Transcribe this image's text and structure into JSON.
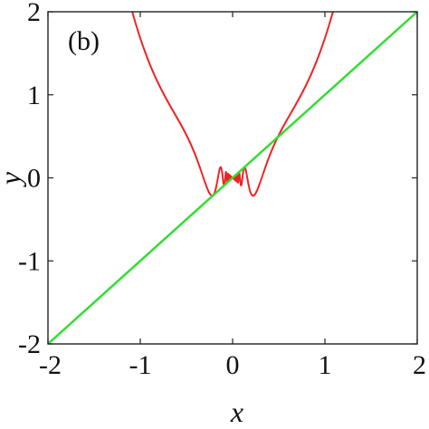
{
  "chart_data": {
    "type": "line",
    "panel_label": "(b)",
    "title": "",
    "xlabel": "x",
    "ylabel": "y",
    "xlim": [
      -2,
      2
    ],
    "ylim": [
      -2,
      2
    ],
    "xticks": [
      -2,
      -1,
      0,
      1,
      2
    ],
    "yticks": [
      -2,
      -1,
      0,
      1,
      2
    ],
    "xtick_labels": [
      "-2",
      "-1",
      "0",
      "1",
      "2"
    ],
    "ytick_labels": [
      "-2",
      "-1",
      "0",
      "1",
      "2"
    ],
    "grid": false,
    "legend": false,
    "series": [
      {
        "color": "#ee2222",
        "function": "y = x*sin(1/x) + x^3 * sin(x)",
        "x_range": [
          -2,
          2
        ]
      },
      {
        "color": "#33dd33",
        "function": "y = x",
        "x": [
          -2,
          2
        ],
        "y": [
          -2,
          2
        ]
      }
    ]
  }
}
